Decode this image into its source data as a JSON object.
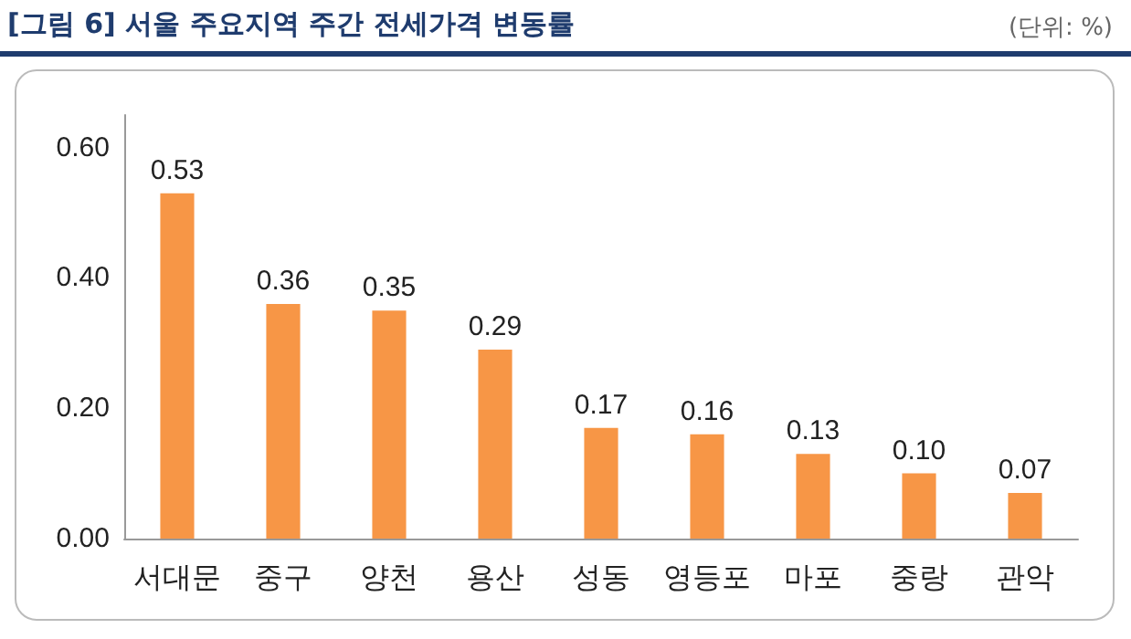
{
  "chart_data": {
    "type": "bar",
    "title": "[그림 6] 서울 주요지역 주간 전세가격 변동률",
    "annotations": [
      "(단위: %)"
    ],
    "categories": [
      "서대문",
      "중구",
      "양천",
      "용산",
      "성동",
      "영등포",
      "마포",
      "중랑",
      "관악"
    ],
    "values": [
      0.53,
      0.36,
      0.35,
      0.29,
      0.17,
      0.16,
      0.13,
      0.1,
      0.07
    ],
    "color": "#f79646",
    "ylim": [
      0,
      0.65
    ],
    "yticks": [
      {
        "value": 0,
        "label": "0.00"
      },
      {
        "value": 0.2,
        "label": "0.20"
      },
      {
        "value": 0.4,
        "label": "0.40"
      },
      {
        "value": 0.6,
        "label": "0.60"
      }
    ],
    "value_labels": [
      "0.53",
      "0.36",
      "0.35",
      "0.29",
      "0.17",
      "0.16",
      "0.13",
      "0.10",
      "0.07"
    ]
  }
}
